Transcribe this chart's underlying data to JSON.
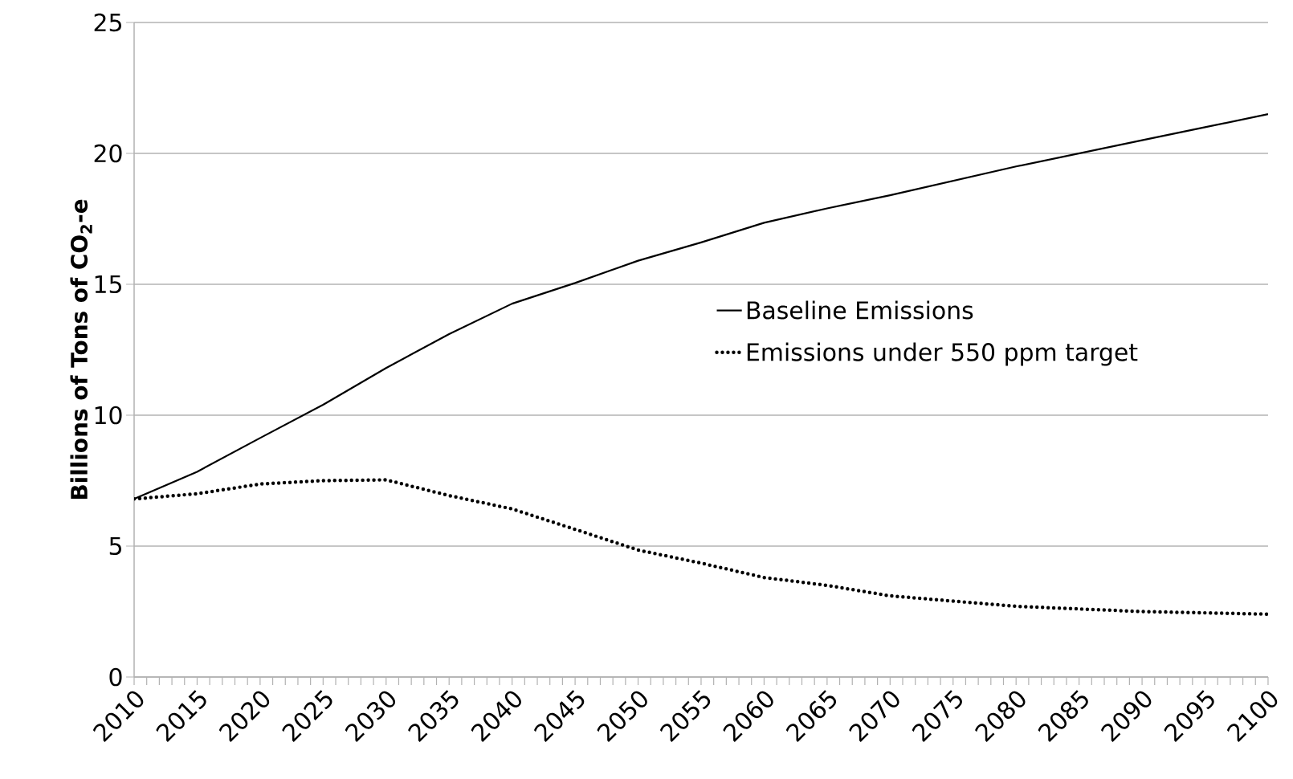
{
  "chart_data": {
    "type": "line",
    "ylabel": "Billions of Tons of CO$_{2}$-e",
    "x": [
      2010,
      2015,
      2020,
      2025,
      2030,
      2035,
      2040,
      2045,
      2050,
      2055,
      2060,
      2065,
      2070,
      2075,
      2080,
      2085,
      2090,
      2095,
      2100
    ],
    "series": [
      {
        "name": "Baseline Emissions",
        "color": "#000000",
        "line_style": "solid",
        "values": [
          6.8,
          7.84,
          9.13,
          10.4,
          11.8,
          13.1,
          14.26,
          15.05,
          15.9,
          16.6,
          17.35,
          17.9,
          18.4,
          18.95,
          19.5,
          20.0,
          20.5,
          21.0,
          21.5
        ]
      },
      {
        "name": "Emissions under 550 ppm target",
        "color": "#000000",
        "line_style": "dotted",
        "values": [
          6.8,
          7.0,
          7.37,
          7.5,
          7.53,
          6.93,
          6.42,
          5.64,
          4.85,
          4.35,
          3.8,
          3.5,
          3.1,
          2.9,
          2.7,
          2.6,
          2.5,
          2.45,
          2.4
        ]
      }
    ],
    "xlim": [
      2010,
      2100
    ],
    "ylim": [
      0,
      25
    ],
    "xticks": [
      2010,
      2015,
      2020,
      2025,
      2030,
      2035,
      2040,
      2045,
      2050,
      2055,
      2060,
      2065,
      2070,
      2075,
      2080,
      2085,
      2090,
      2095,
      2100
    ],
    "yticks": [
      0,
      5,
      10,
      15,
      20,
      25
    ],
    "grid": "y",
    "legend": "right",
    "marker": "none"
  }
}
